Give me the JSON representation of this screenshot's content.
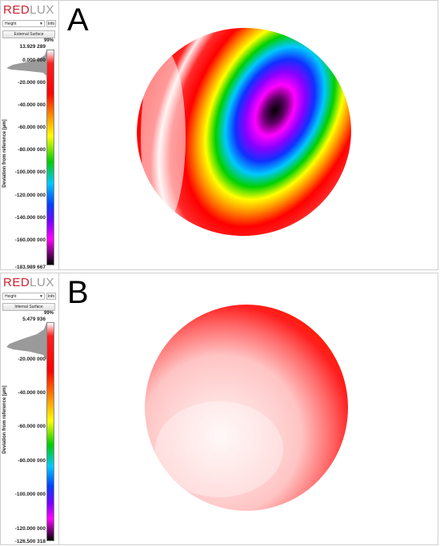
{
  "panels": [
    {
      "letter": "A",
      "logo": {
        "part1": "RED",
        "part2": "LUX"
      },
      "dropdown_value": "Height",
      "info_label": "Info",
      "surface_button": "External Surface",
      "percent_label": "99%",
      "axis_label": "Deviation from reference [µm]",
      "max_label": "13.929 289",
      "min_label": "-183.989 667",
      "ticks": [
        "0.000 000",
        "-20.000 000",
        "-40.000 000",
        "-60.000 000",
        "-80.000 000",
        "-100.000 000",
        "-120.000 000",
        "-140.000 000",
        "-160.000 000"
      ]
    },
    {
      "letter": "B",
      "logo": {
        "part1": "RED",
        "part2": "LUX"
      },
      "dropdown_value": "Height",
      "info_label": "Info",
      "surface_button": "Internal Surface",
      "percent_label": "99%",
      "axis_label": "Deviation from reference [µm]",
      "max_label": "5.479 936",
      "min_label": "-126.500 318",
      "ticks": [
        "-20.000 000",
        "-40.000 000",
        "-60.000 000",
        "-80.000 000",
        "-100.000 000",
        "-120.000 000"
      ]
    }
  ],
  "colors": {
    "brand_red": "#d0202e",
    "brand_grey": "#9a9a9a",
    "scale": [
      "#ffffff",
      "#ff0000",
      "#ff8800",
      "#ffff00",
      "#00cc00",
      "#00ccff",
      "#0000ff",
      "#8800ff",
      "#ff00ff",
      "#000000"
    ]
  }
}
